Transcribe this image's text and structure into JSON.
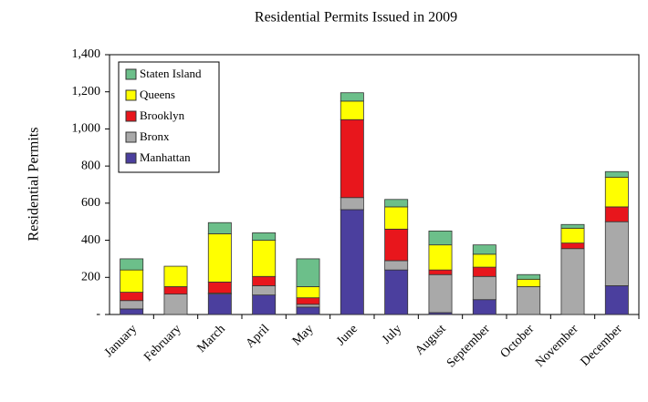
{
  "chart_data": {
    "type": "stacked-bar",
    "title": "Residential Permits Issued in 2009",
    "y_label": "Residential Permits",
    "categories": [
      "January",
      "February",
      "March",
      "April",
      "May",
      "June",
      "July",
      "August",
      "September",
      "October",
      "November",
      "December"
    ],
    "series": [
      {
        "name": "Manhattan",
        "color": "#4b3f9e",
        "values": [
          30,
          0,
          110,
          105,
          40,
          565,
          240,
          10,
          80,
          0,
          0,
          155
        ]
      },
      {
        "name": "Bronx",
        "color": "#a9a9a9",
        "values": [
          45,
          110,
          5,
          50,
          15,
          65,
          50,
          205,
          125,
          150,
          355,
          345
        ]
      },
      {
        "name": "Brooklyn",
        "color": "#e8161c",
        "values": [
          45,
          40,
          60,
          50,
          35,
          420,
          170,
          25,
          50,
          0,
          30,
          80
        ]
      },
      {
        "name": "Queens",
        "color": "#ffff00",
        "values": [
          120,
          110,
          260,
          195,
          60,
          100,
          120,
          135,
          70,
          40,
          80,
          160
        ]
      },
      {
        "name": "Staten Island",
        "color": "#6cbf8a",
        "values": [
          60,
          0,
          60,
          40,
          150,
          45,
          40,
          75,
          50,
          25,
          20,
          30
        ]
      }
    ],
    "ylim": [
      0,
      1400
    ],
    "yticks": [
      {
        "value": 0,
        "label": "-"
      },
      200,
      400,
      600,
      800,
      {
        "value": 1000,
        "label": "1,000"
      },
      {
        "value": 1200,
        "label": "1,200"
      },
      {
        "value": 1400,
        "label": "1,400"
      }
    ],
    "legend": "upper left"
  }
}
